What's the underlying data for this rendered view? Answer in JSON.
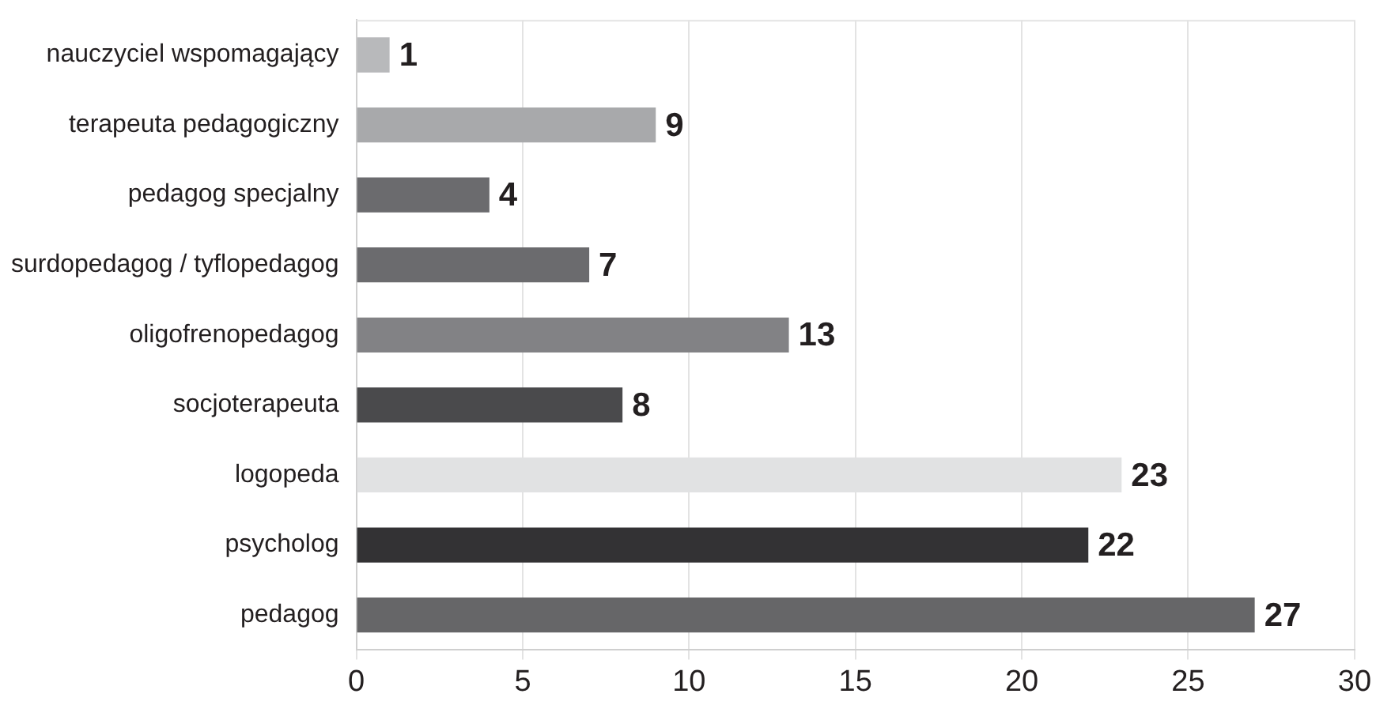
{
  "chart_data": {
    "type": "bar",
    "orientation": "horizontal",
    "categories": [
      "nauczyciel wspomagający",
      "terapeuta pedagogiczny",
      "pedagog specjalny",
      "surdopedagog / tyflopedagog",
      "oligofrenopedagog",
      "socjoterapeuta",
      "logopeda",
      "psycholog",
      "pedagog"
    ],
    "values": [
      1,
      9,
      4,
      7,
      13,
      8,
      23,
      22,
      27
    ],
    "colors": [
      "#b8b9bb",
      "#a8a9ab",
      "#6b6b6e",
      "#6b6b6e",
      "#828285",
      "#4a4a4c",
      "#e1e2e3",
      "#333234",
      "#666668"
    ],
    "xlim": [
      0,
      30
    ],
    "xticks": [
      0,
      5,
      10,
      15,
      20,
      25,
      30
    ],
    "grid": "x",
    "legend": false,
    "data_labels": true
  }
}
